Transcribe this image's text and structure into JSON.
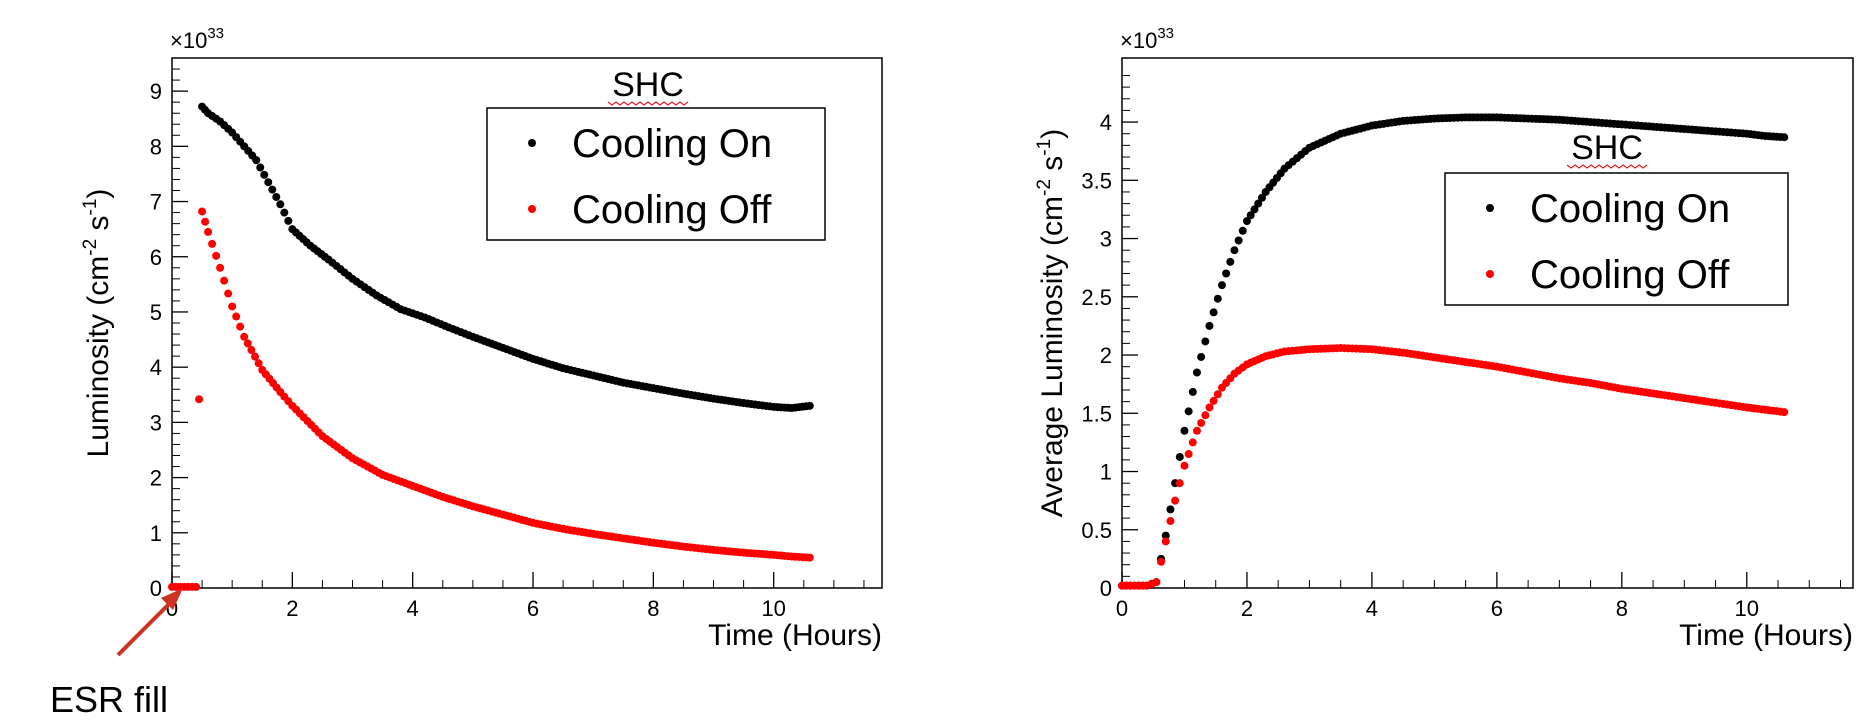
{
  "chart_data": [
    {
      "type": "scatter",
      "panel": "left",
      "title": "",
      "xlabel": "Time (Hours)",
      "ylabel_html": "Luminosity (cm<tspan baseline-shift=\"super\" font-size=\"18\">-2</tspan> s<tspan baseline-shift=\"super\" font-size=\"18\">-1</tspan>)",
      "ylabel_parts": [
        "Luminosity (cm",
        "-2",
        " s",
        "-1",
        ")"
      ],
      "multiplier": "×10",
      "multiplier_exp": "33",
      "xlim": [
        0,
        11.8
      ],
      "ylim": [
        0,
        9.6
      ],
      "xticks": [
        0,
        2,
        4,
        6,
        8,
        10
      ],
      "yticks": [
        0,
        1,
        2,
        3,
        4,
        5,
        6,
        7,
        8,
        9
      ],
      "legend": {
        "title": "SHC",
        "placement": "top-right",
        "entries": [
          {
            "label": "Cooling On",
            "color": "#000000"
          },
          {
            "label": "Cooling Off",
            "color": "#ff0000"
          }
        ]
      },
      "series": [
        {
          "name": "Cooling On",
          "color": "#000000",
          "points": [
            [
              0.5,
              8.72
            ],
            [
              0.6,
              8.6
            ],
            [
              0.8,
              8.45
            ],
            [
              1.0,
              8.25
            ],
            [
              1.2,
              8.0
            ],
            [
              1.4,
              7.75
            ],
            [
              1.6,
              7.35
            ],
            [
              1.8,
              6.95
            ],
            [
              2.0,
              6.5
            ],
            [
              2.3,
              6.2
            ],
            [
              2.6,
              5.95
            ],
            [
              3.0,
              5.6
            ],
            [
              3.4,
              5.3
            ],
            [
              3.8,
              5.05
            ],
            [
              4.2,
              4.9
            ],
            [
              4.6,
              4.72
            ],
            [
              5.0,
              4.55
            ],
            [
              5.5,
              4.35
            ],
            [
              6.0,
              4.15
            ],
            [
              6.5,
              3.98
            ],
            [
              7.0,
              3.85
            ],
            [
              7.5,
              3.72
            ],
            [
              8.0,
              3.62
            ],
            [
              8.5,
              3.52
            ],
            [
              9.0,
              3.43
            ],
            [
              9.5,
              3.35
            ],
            [
              10.0,
              3.28
            ],
            [
              10.3,
              3.26
            ],
            [
              10.6,
              3.3
            ]
          ]
        },
        {
          "name": "Cooling Off",
          "color": "#ff0000",
          "points": [
            [
              0.0,
              0.02
            ],
            [
              0.2,
              0.02
            ],
            [
              0.4,
              0.02
            ],
            [
              0.5,
              6.82
            ],
            [
              0.6,
              6.45
            ],
            [
              0.8,
              5.8
            ],
            [
              1.0,
              5.1
            ],
            [
              1.2,
              4.55
            ],
            [
              1.5,
              3.95
            ],
            [
              1.8,
              3.55
            ],
            [
              2.0,
              3.3
            ],
            [
              2.5,
              2.75
            ],
            [
              3.0,
              2.35
            ],
            [
              3.5,
              2.05
            ],
            [
              4.0,
              1.85
            ],
            [
              4.5,
              1.65
            ],
            [
              5.0,
              1.48
            ],
            [
              5.5,
              1.33
            ],
            [
              6.0,
              1.18
            ],
            [
              6.5,
              1.07
            ],
            [
              7.0,
              0.98
            ],
            [
              7.5,
              0.9
            ],
            [
              8.0,
              0.82
            ],
            [
              8.5,
              0.75
            ],
            [
              9.0,
              0.69
            ],
            [
              9.5,
              0.64
            ],
            [
              10.0,
              0.6
            ],
            [
              10.3,
              0.57
            ],
            [
              10.6,
              0.55
            ]
          ]
        }
      ]
    },
    {
      "type": "scatter",
      "panel": "right",
      "title": "",
      "xlabel": "Time (Hours)",
      "ylabel_parts": [
        "Average Luminosity (cm",
        "-2",
        " s",
        "-1",
        ")"
      ],
      "multiplier": "×10",
      "multiplier_exp": "33",
      "xlim": [
        0,
        11.7
      ],
      "ylim": [
        0,
        4.55
      ],
      "xticks": [
        0,
        2,
        4,
        6,
        8,
        10
      ],
      "yticks": [
        0,
        0.5,
        1,
        1.5,
        2,
        2.5,
        3,
        3.5,
        4
      ],
      "legend": {
        "title": "SHC",
        "placement": "top-right",
        "entries": [
          {
            "label": "Cooling On",
            "color": "#000000"
          },
          {
            "label": "Cooling Off",
            "color": "#ff0000"
          }
        ]
      },
      "series": [
        {
          "name": "Cooling On",
          "color": "#000000",
          "points": [
            [
              0.0,
              0.02
            ],
            [
              0.2,
              0.02
            ],
            [
              0.4,
              0.02
            ],
            [
              0.55,
              0.05
            ],
            [
              0.7,
              0.45
            ],
            [
              0.85,
              0.9
            ],
            [
              1.0,
              1.35
            ],
            [
              1.2,
              1.85
            ],
            [
              1.4,
              2.25
            ],
            [
              1.6,
              2.6
            ],
            [
              1.8,
              2.9
            ],
            [
              2.0,
              3.15
            ],
            [
              2.3,
              3.4
            ],
            [
              2.6,
              3.6
            ],
            [
              3.0,
              3.78
            ],
            [
              3.5,
              3.9
            ],
            [
              4.0,
              3.97
            ],
            [
              4.5,
              4.01
            ],
            [
              5.0,
              4.03
            ],
            [
              5.5,
              4.04
            ],
            [
              6.0,
              4.04
            ],
            [
              6.5,
              4.03
            ],
            [
              7.0,
              4.02
            ],
            [
              7.5,
              4.0
            ],
            [
              8.0,
              3.98
            ],
            [
              8.5,
              3.96
            ],
            [
              9.0,
              3.94
            ],
            [
              9.5,
              3.92
            ],
            [
              10.0,
              3.9
            ],
            [
              10.3,
              3.88
            ],
            [
              10.6,
              3.87
            ]
          ]
        },
        {
          "name": "Cooling Off",
          "color": "#ff0000",
          "points": [
            [
              0.0,
              0.02
            ],
            [
              0.2,
              0.02
            ],
            [
              0.4,
              0.02
            ],
            [
              0.55,
              0.05
            ],
            [
              0.7,
              0.4
            ],
            [
              0.85,
              0.75
            ],
            [
              1.0,
              1.05
            ],
            [
              1.2,
              1.35
            ],
            [
              1.4,
              1.55
            ],
            [
              1.6,
              1.72
            ],
            [
              1.8,
              1.84
            ],
            [
              2.0,
              1.92
            ],
            [
              2.3,
              1.99
            ],
            [
              2.6,
              2.03
            ],
            [
              3.0,
              2.05
            ],
            [
              3.5,
              2.06
            ],
            [
              4.0,
              2.05
            ],
            [
              4.5,
              2.02
            ],
            [
              5.0,
              1.98
            ],
            [
              5.5,
              1.94
            ],
            [
              6.0,
              1.9
            ],
            [
              6.5,
              1.85
            ],
            [
              7.0,
              1.8
            ],
            [
              7.5,
              1.76
            ],
            [
              8.0,
              1.71
            ],
            [
              8.5,
              1.67
            ],
            [
              9.0,
              1.63
            ],
            [
              9.5,
              1.59
            ],
            [
              10.0,
              1.55
            ],
            [
              10.3,
              1.53
            ],
            [
              10.6,
              1.51
            ]
          ]
        }
      ]
    }
  ],
  "annotation": {
    "label": "ESR fill",
    "arrow_color": "#cc3322"
  }
}
